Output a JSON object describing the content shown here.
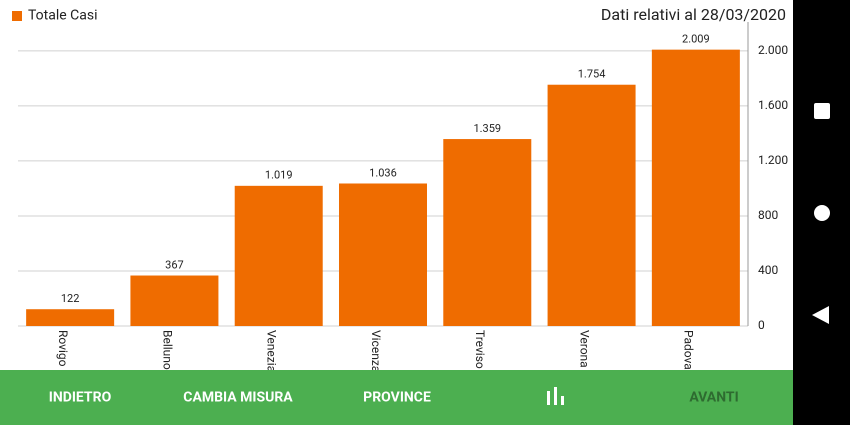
{
  "chart_data": {
    "type": "bar",
    "title": "Dati relativi al 28/03/2020",
    "categories": [
      "Rovigo",
      "Belluno",
      "Venezia",
      "Vicenza",
      "Treviso",
      "Verona",
      "Padova"
    ],
    "series": [
      {
        "name": "Totale Casi",
        "color": "#ef6c00",
        "values": [
          122,
          367,
          1019,
          1036,
          1359,
          1754,
          2009
        ],
        "value_labels": [
          "122",
          "367",
          "1.019",
          "1.036",
          "1.359",
          "1.754",
          "2.009"
        ]
      }
    ],
    "ylim": [
      0,
      2210
    ],
    "yticks": [
      0,
      400,
      800,
      {
        "value": 1200,
        "label": "1.200"
      },
      {
        "value": 1600,
        "label": "1.600"
      },
      {
        "value": 2000,
        "label": "2.000"
      }
    ],
    "grid": true,
    "legend": "top-left"
  },
  "nav": {
    "buttons": [
      "INDIETRO",
      "CAMBIA MISURA",
      "PROVINCE",
      "AVANTI"
    ]
  }
}
